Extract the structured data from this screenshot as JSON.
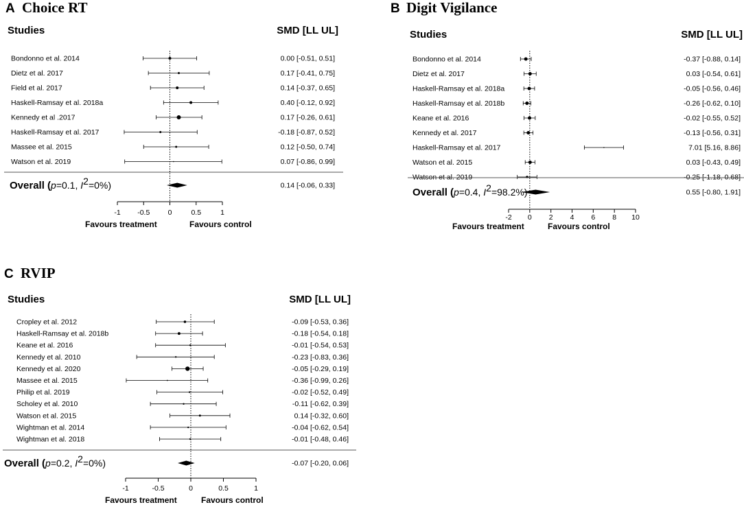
{
  "chart_data": [
    {
      "type": "forest",
      "letter": "A",
      "title": "Choice RT",
      "studies_header": "Studies",
      "ci_header": "SMD [LL UL]",
      "studies": [
        {
          "label": "Bondonno et al. 2014",
          "smd": 0.0,
          "ll": -0.51,
          "ul": 0.51,
          "ci_text": "0.00 [-0.51, 0.51]",
          "weight": 2
        },
        {
          "label": "Dietz et al. 2017",
          "smd": 0.17,
          "ll": -0.41,
          "ul": 0.75,
          "ci_text": "0.17 [-0.41, 0.75]",
          "weight": 1.5
        },
        {
          "label": "Field et al. 2017",
          "smd": 0.14,
          "ll": -0.37,
          "ul": 0.65,
          "ci_text": "0.14 [-0.37, 0.65]",
          "weight": 2
        },
        {
          "label": "Haskell-Ramsay et al. 2018a",
          "smd": 0.4,
          "ll": -0.12,
          "ul": 0.92,
          "ci_text": "0.40 [-0.12, 0.92]",
          "weight": 2
        },
        {
          "label": "Kennedy et al .2017",
          "smd": 0.17,
          "ll": -0.26,
          "ul": 0.61,
          "ci_text": "0.17 [-0.26, 0.61]",
          "weight": 3
        },
        {
          "label": "Haskell-Ramsay et al. 2017",
          "smd": -0.18,
          "ll": -0.87,
          "ul": 0.52,
          "ci_text": "-0.18 [-0.87, 0.52]",
          "weight": 1.5
        },
        {
          "label": "Massee et al. 2015",
          "smd": 0.12,
          "ll": -0.5,
          "ul": 0.74,
          "ci_text": "0.12 [-0.50, 0.74]",
          "weight": 1.5
        },
        {
          "label": "Watson et al. 2019",
          "smd": 0.07,
          "ll": -0.86,
          "ul": 0.99,
          "ci_text": "0.07 [-0.86, 0.99]",
          "weight": 0.8
        }
      ],
      "overall": {
        "label_prefix": "Overall",
        "p_text": "p",
        "p_value": "=0.1, ",
        "i_text": "I",
        "i_sup": "2",
        "i_value": "=0%)",
        "smd": 0.14,
        "ll": -0.06,
        "ul": 0.33,
        "ci_text": "0.14 [-0.06, 0.33]"
      },
      "xlim": [
        -1,
        1
      ],
      "ticks": [
        {
          "v": -1,
          "label": "-1"
        },
        {
          "v": -0.5,
          "label": "-0.5"
        },
        {
          "v": 0,
          "label": "0"
        },
        {
          "v": 0.5,
          "label": "0.5"
        },
        {
          "v": 1,
          "label": "1"
        }
      ],
      "favours_left": "Favours treatment",
      "favours_right": "Favours control"
    },
    {
      "type": "forest",
      "letter": "B",
      "title": "Digit Vigilance",
      "studies_header": "Studies",
      "ci_header": "SMD [LL UL]",
      "studies": [
        {
          "label": "Bondonno et al. 2014",
          "smd": -0.37,
          "ll": -0.88,
          "ul": 0.14,
          "ci_text": "-0.37 [-0.88, 0.14]",
          "weight": 2.5
        },
        {
          "label": "Dietz et al. 2017",
          "smd": 0.03,
          "ll": -0.54,
          "ul": 0.61,
          "ci_text": "0.03 [-0.54, 0.61]",
          "weight": 2.5
        },
        {
          "label": "Haskell-Ramsay et al. 2018a",
          "smd": -0.05,
          "ll": -0.56,
          "ul": 0.46,
          "ci_text": "-0.05 [-0.56, 0.46]",
          "weight": 2.5
        },
        {
          "label": "Haskell-Ramsay et al. 2018b",
          "smd": -0.26,
          "ll": -0.62,
          "ul": 0.1,
          "ci_text": "-0.26 [-0.62, 0.10]",
          "weight": 2.5
        },
        {
          "label": "Keane et al. 2016",
          "smd": -0.02,
          "ll": -0.55,
          "ul": 0.52,
          "ci_text": "-0.02 [-0.55, 0.52]",
          "weight": 2.5
        },
        {
          "label": "Kennedy et al. 2017",
          "smd": -0.13,
          "ll": -0.56,
          "ul": 0.31,
          "ci_text": "-0.13 [-0.56, 0.31]",
          "weight": 2.5
        },
        {
          "label": "Haskell-Ramsay et al. 2017",
          "smd": 7.01,
          "ll": 5.16,
          "ul": 8.86,
          "ci_text": "7.01 [5.16, 8.86]",
          "weight": 0.8
        },
        {
          "label": "Watson et al. 2015",
          "smd": 0.03,
          "ll": -0.43,
          "ul": 0.49,
          "ci_text": "0.03 [-0.43, 0.49]",
          "weight": 2.5
        },
        {
          "label": "Watson et al. 2019",
          "smd": -0.25,
          "ll": -1.18,
          "ul": 0.68,
          "ci_text": "-0.25 [-1.18, 0.68]",
          "weight": 1.8
        }
      ],
      "overall": {
        "label_prefix": "Overall",
        "p_text": "p",
        "p_value": "=0.4, ",
        "i_text": "I",
        "i_sup": "2",
        "i_value": "=98.2%)",
        "smd": 0.55,
        "ll": -0.8,
        "ul": 1.91,
        "ci_text": "0.55 [-0.80, 1.91]"
      },
      "xlim": [
        -2,
        10
      ],
      "ticks": [
        {
          "v": -2,
          "label": "-2"
        },
        {
          "v": 0,
          "label": "0"
        },
        {
          "v": 2,
          "label": "2"
        },
        {
          "v": 4,
          "label": "4"
        },
        {
          "v": 6,
          "label": "6"
        },
        {
          "v": 8,
          "label": "8"
        },
        {
          "v": 10,
          "label": "10"
        }
      ],
      "favours_left": "Favours treatment",
      "favours_right": "Favours control"
    },
    {
      "type": "forest",
      "letter": "C",
      "title": "RVIP",
      "studies_header": "Studies",
      "ci_header": "SMD [LL UL]",
      "studies": [
        {
          "label": "Cropley et al. 2012",
          "smd": -0.09,
          "ll": -0.53,
          "ul": 0.36,
          "ci_text": "-0.09 [-0.53, 0.36]",
          "weight": 1.8
        },
        {
          "label": "Haskell-Ramsay et al. 2018b",
          "smd": -0.18,
          "ll": -0.54,
          "ul": 0.18,
          "ci_text": "-0.18 [-0.54, 0.18]",
          "weight": 2
        },
        {
          "label": "Keane et al. 2016",
          "smd": -0.01,
          "ll": -0.54,
          "ul": 0.53,
          "ci_text": "-0.01 [-0.54, 0.53]",
          "weight": 1.2
        },
        {
          "label": "Kennedy et al. 2010",
          "smd": -0.23,
          "ll": -0.83,
          "ul": 0.36,
          "ci_text": "-0.23 [-0.83, 0.36]",
          "weight": 1.2
        },
        {
          "label": "Kennedy et al. 2020",
          "smd": -0.05,
          "ll": -0.29,
          "ul": 0.19,
          "ci_text": "-0.05 [-0.29, 0.19]",
          "weight": 3.2
        },
        {
          "label": "Massee et al. 2015",
          "smd": -0.36,
          "ll": -0.99,
          "ul": 0.26,
          "ci_text": "-0.36 [-0.99, 0.26]",
          "weight": 0.9
        },
        {
          "label": "Philip et al. 2019",
          "smd": -0.02,
          "ll": -0.52,
          "ul": 0.49,
          "ci_text": "-0.02 [-0.52, 0.49]",
          "weight": 1.2
        },
        {
          "label": "Scholey et al. 2010",
          "smd": -0.11,
          "ll": -0.62,
          "ul": 0.39,
          "ci_text": "-0.11 [-0.62, 0.39]",
          "weight": 1.2
        },
        {
          "label": "Watson et al. 2015",
          "smd": 0.14,
          "ll": -0.32,
          "ul": 0.6,
          "ci_text": "0.14 [-0.32, 0.60]",
          "weight": 1.5
        },
        {
          "label": "Wightman et al. 2014",
          "smd": -0.04,
          "ll": -0.62,
          "ul": 0.54,
          "ci_text": "-0.04 [-0.62, 0.54]",
          "weight": 1.2
        },
        {
          "label": "Wightman et al. 2018",
          "smd": -0.01,
          "ll": -0.48,
          "ul": 0.46,
          "ci_text": "-0.01 [-0.48, 0.46]",
          "weight": 1.2
        }
      ],
      "overall": {
        "label_prefix": "Overall",
        "p_text": "p",
        "p_value": "=0.2, ",
        "i_text": "I",
        "i_sup": "2",
        "i_value": "=0%)",
        "smd": -0.07,
        "ll": -0.2,
        "ul": 0.06,
        "ci_text": "-0.07 [-0.20, 0.06]"
      },
      "xlim": [
        -1,
        1
      ],
      "ticks": [
        {
          "v": -1,
          "label": "-1"
        },
        {
          "v": -0.5,
          "label": "-0.5"
        },
        {
          "v": 0,
          "label": "0"
        },
        {
          "v": 0.5,
          "label": "0.5"
        },
        {
          "v": 1,
          "label": "1"
        }
      ],
      "favours_left": "Favours treatment",
      "favours_right": "Favours control"
    }
  ]
}
